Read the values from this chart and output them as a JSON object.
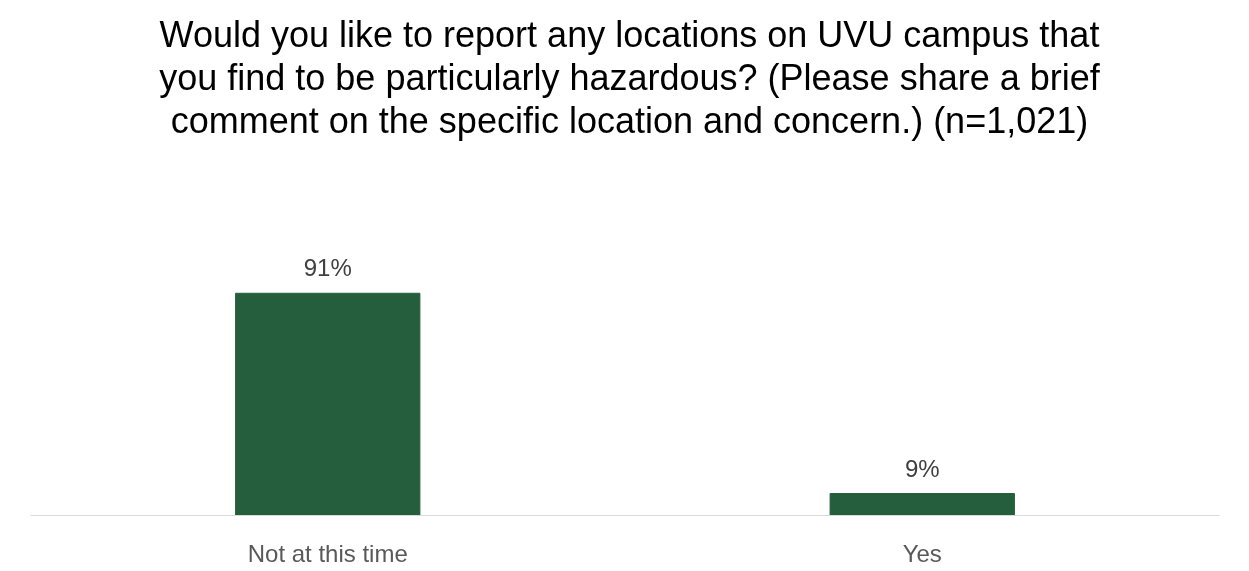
{
  "chart_data": {
    "type": "bar",
    "title": "Would you like to report any locations on UVU campus that you find to be particularly hazardous? (Please share a brief comment on the specific location and concern.) (n=1,021)",
    "categories": [
      "Not at this time",
      "Yes"
    ],
    "values": [
      91,
      9
    ],
    "value_labels": [
      "91%",
      "9%"
    ],
    "color": "#245e3c"
  }
}
